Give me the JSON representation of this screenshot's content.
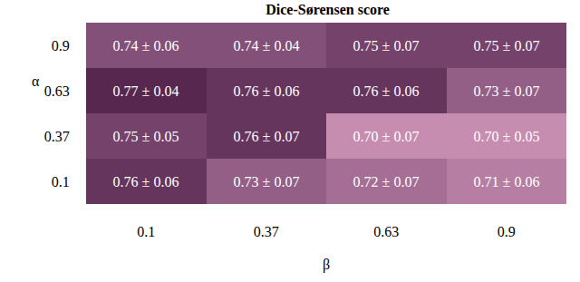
{
  "chart_data": {
    "type": "heatmap",
    "title": "Dice-Sørensen score",
    "x_label": "β",
    "y_label": "α",
    "x": [
      "0.1",
      "0.37",
      "0.63",
      "0.9"
    ],
    "y": [
      "0.1",
      "0.37",
      "0.63",
      "0.9"
    ],
    "values": [
      [
        0.76,
        0.73,
        0.72,
        0.71
      ],
      [
        0.75,
        0.76,
        0.7,
        0.7
      ],
      [
        0.77,
        0.76,
        0.76,
        0.73
      ],
      [
        0.74,
        0.74,
        0.75,
        0.75
      ]
    ],
    "errors": [
      [
        0.06,
        0.07,
        0.07,
        0.06
      ],
      [
        0.05,
        0.07,
        0.07,
        0.05
      ],
      [
        0.04,
        0.06,
        0.06,
        0.07
      ],
      [
        0.06,
        0.04,
        0.07,
        0.07
      ]
    ],
    "value_labels": [
      [
        "0.76 ± 0.06",
        "0.73 ± 0.07",
        "0.72 ± 0.07",
        "0.71 ± 0.06"
      ],
      [
        "0.75 ± 0.05",
        "0.76 ± 0.07",
        "0.70 ± 0.07",
        "0.70 ± 0.05"
      ],
      [
        "0.77 ± 0.04",
        "0.76 ± 0.06",
        "0.76 ± 0.06",
        "0.73 ± 0.07"
      ],
      [
        "0.74 ± 0.06",
        "0.74 ± 0.04",
        "0.75 ± 0.07",
        "0.75 ± 0.07"
      ]
    ],
    "data_labels": true
  }
}
